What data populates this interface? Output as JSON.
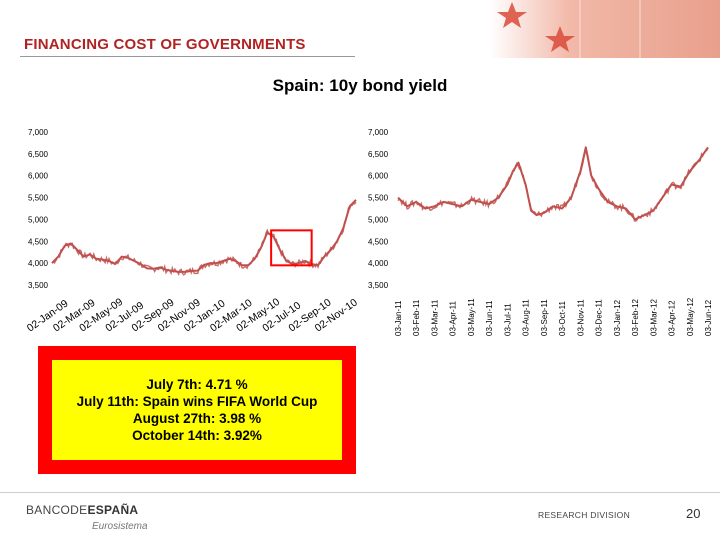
{
  "slide": {
    "title": "FINANCING COST OF GOVERNMENTS",
    "page_number": "20",
    "footer_right": "RESEARCH DIVISION",
    "logo_main": "BANCODE",
    "logo_bold": "ESPAÑA",
    "logo_sub": "Eurosistema"
  },
  "note": {
    "lines": [
      "July 7th: 4.71 %",
      "July 11th: Spain wins FIFA World Cup",
      "August 27th: 3.98 %",
      "October 14th: 3.92%"
    ]
  },
  "colors": {
    "line": "#c0504d",
    "highlight_box": "#ff0000",
    "note_fill": "#ffff00",
    "title": "#b22222"
  },
  "chart_data": [
    {
      "type": "line",
      "title": "Spain: 10y bond yield",
      "panel": "left",
      "ylim": [
        3500,
        7000
      ],
      "yticks": [
        "7,000",
        "6,500",
        "6,000",
        "5,500",
        "5,000",
        "4,500",
        "4,000",
        "3,500"
      ],
      "x_tick_labels": [
        "02-Jan-09",
        "02-Mar-09",
        "02-May-09",
        "02-Jul-09",
        "02-Sep-09",
        "02-Nov-09",
        "02-Jan-10",
        "02-Mar-10",
        "02-May-10",
        "02-Jul-10",
        "02-Sep-10",
        "02-Nov-10"
      ],
      "x_range": [
        0,
        24
      ],
      "series": [
        {
          "name": "Spain 10y",
          "x": [
            0,
            0.5,
            1,
            1.5,
            2,
            2.5,
            3,
            3.5,
            4,
            4.5,
            5,
            5.5,
            6,
            6.5,
            7,
            7.5,
            8,
            8.5,
            9,
            9.5,
            10,
            10.5,
            11,
            11.5,
            12,
            12.5,
            13,
            13.5,
            14,
            14.5,
            15,
            15.5,
            16,
            16.5,
            17,
            17.5,
            18,
            18.5,
            19,
            19.5,
            20,
            20.5,
            21,
            21.5,
            22,
            22.5,
            23,
            23.5,
            24
          ],
          "values": [
            4000,
            4150,
            4400,
            4450,
            4300,
            4150,
            4200,
            4100,
            4080,
            4050,
            3980,
            4150,
            4120,
            4050,
            3980,
            3880,
            3870,
            3900,
            3850,
            3820,
            3800,
            3800,
            3820,
            3830,
            3960,
            4000,
            4000,
            4050,
            4100,
            4050,
            3950,
            3950,
            4100,
            4350,
            4700,
            4600,
            4300,
            4050,
            3980,
            4000,
            4050,
            3980,
            3950,
            4150,
            4300,
            4500,
            4800,
            5300,
            5450
          ]
        }
      ],
      "highlight": {
        "x_from": 17.3,
        "x_to": 20.5,
        "y_from": 3950,
        "y_to": 4750
      }
    },
    {
      "type": "line",
      "panel": "right",
      "ylim": [
        3500,
        7000
      ],
      "yticks": [
        "7,000",
        "6,500",
        "6,000",
        "5,500",
        "5,000",
        "4,500",
        "4,000",
        "3,500"
      ],
      "x_tick_labels": [
        "03-Jan-11",
        "03-Feb-11",
        "03-Mar-11",
        "03-Apr-11",
        "03-May-11",
        "03-Jun-11",
        "03-Jul-11",
        "03-Aug-11",
        "03-Sep-11",
        "03-Oct-11",
        "03-Nov-11",
        "03-Dec-11",
        "03-Jan-12",
        "03-Feb-12",
        "03-Mar-12",
        "03-Apr-12",
        "03-May-12",
        "03-Jun-12"
      ],
      "x_range": [
        0,
        17
      ],
      "series": [
        {
          "name": "Spain 10y",
          "x": [
            0,
            0.5,
            1,
            1.5,
            2,
            2.5,
            3,
            3.5,
            4,
            4.5,
            5,
            5.5,
            6,
            6.3,
            6.6,
            7,
            7.3,
            7.6,
            8,
            8.5,
            9,
            9.5,
            10,
            10.3,
            10.6,
            11,
            11.5,
            12,
            12.5,
            13,
            13.5,
            14,
            14.5,
            15,
            15.5,
            16,
            16.5,
            17
          ],
          "values": [
            5500,
            5300,
            5400,
            5250,
            5300,
            5400,
            5350,
            5300,
            5450,
            5400,
            5350,
            5500,
            5800,
            6100,
            6300,
            5800,
            5200,
            5100,
            5150,
            5300,
            5250,
            5500,
            6100,
            6650,
            6000,
            5700,
            5400,
            5300,
            5250,
            5000,
            5100,
            5200,
            5500,
            5800,
            5750,
            6100,
            6350,
            6650
          ]
        }
      ]
    }
  ]
}
